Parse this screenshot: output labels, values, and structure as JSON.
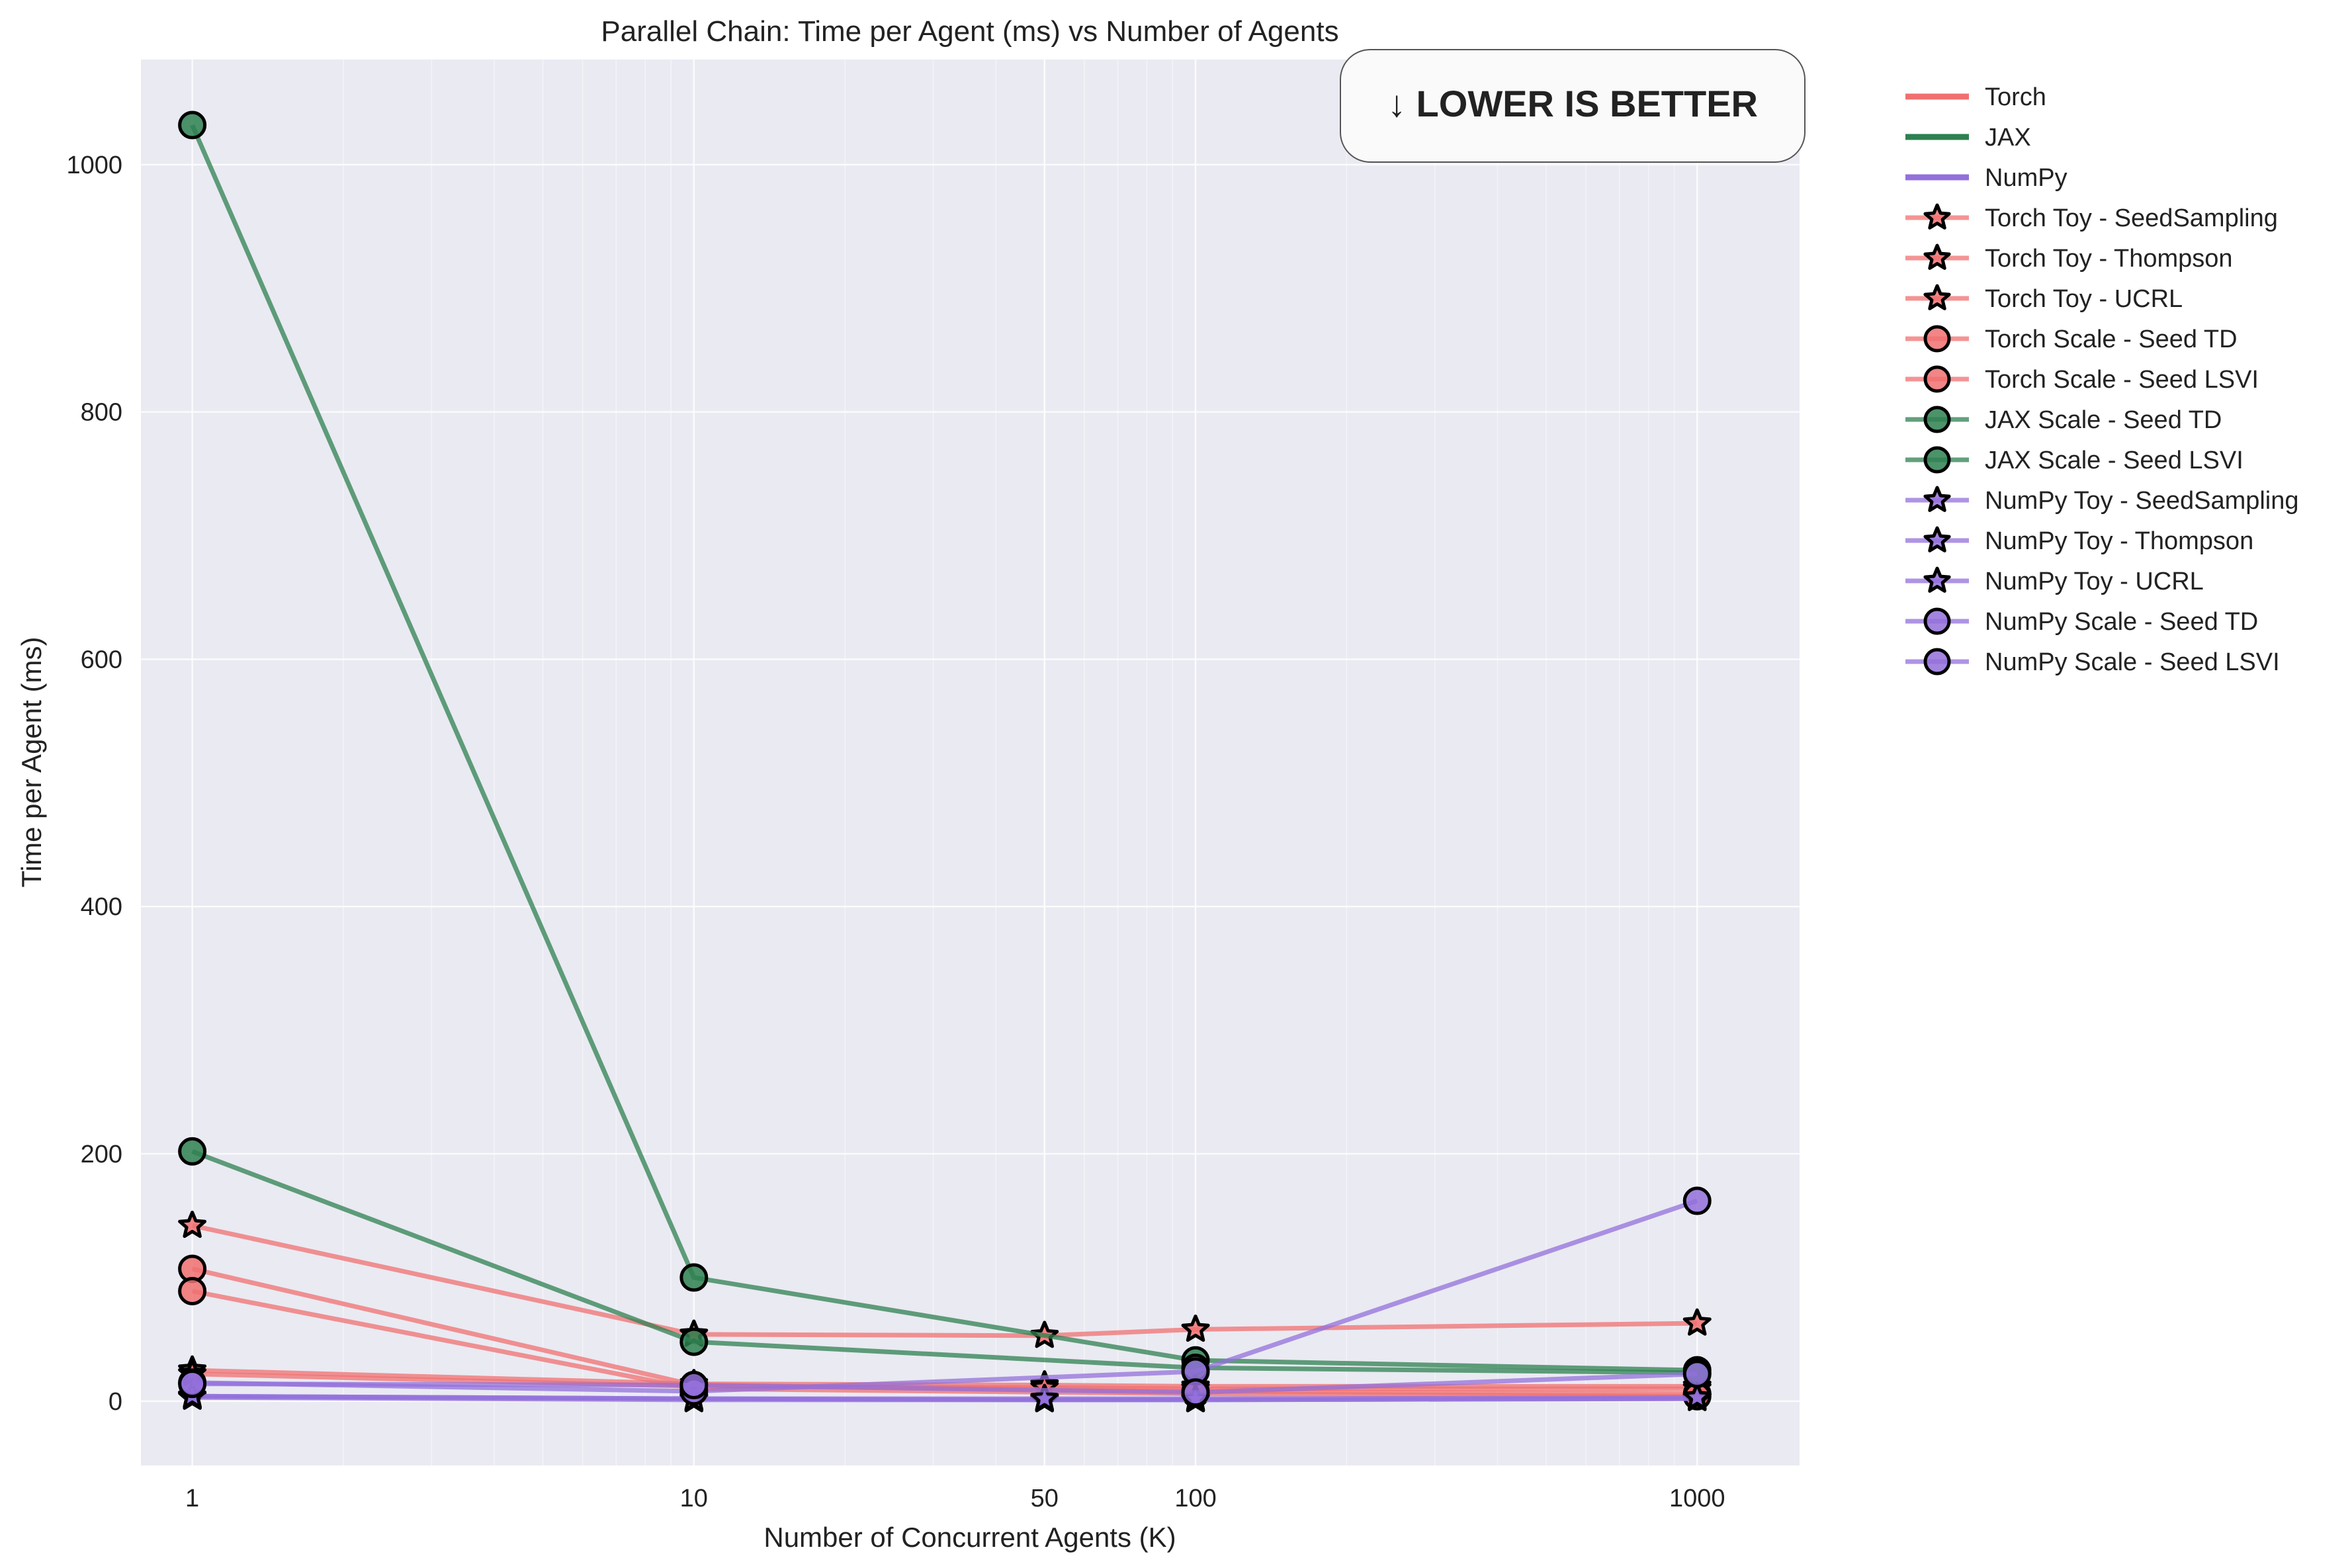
{
  "chart_data": {
    "type": "line",
    "title": "Parallel Chain: Time per Agent (ms) vs Number of Agents",
    "xlabel": "Number of Concurrent Agents (K)",
    "ylabel": "Time per Agent (ms)",
    "x_scale": "log",
    "xlim": [
      0.79,
      1600
    ],
    "ylim": [
      -52,
      1085
    ],
    "x_ticks": [
      1,
      10,
      50,
      100,
      1000
    ],
    "x_tick_labels": [
      "1",
      "10",
      "50",
      "100",
      "1000"
    ],
    "y_ticks": [
      0,
      200,
      400,
      600,
      800,
      1000
    ],
    "y_tick_labels": [
      "0",
      "200",
      "400",
      "600",
      "800",
      "1000"
    ],
    "grid": true,
    "legend_position": "outside-right",
    "annotation": "↓ LOWER IS BETTER",
    "colors": {
      "Torch": "#f07070",
      "JAX": "#2e8050",
      "NumPy": "#9370db"
    },
    "legend": [
      {
        "label": "Torch",
        "color": "#f07070",
        "marker": "none"
      },
      {
        "label": "JAX",
        "color": "#2e8050",
        "marker": "none"
      },
      {
        "label": "NumPy",
        "color": "#9370db",
        "marker": "none"
      },
      {
        "label": "Torch Toy - SeedSampling",
        "color": "#f07070",
        "marker": "star"
      },
      {
        "label": "Torch Toy - Thompson",
        "color": "#f07070",
        "marker": "star"
      },
      {
        "label": "Torch Toy - UCRL",
        "color": "#f07070",
        "marker": "star"
      },
      {
        "label": "Torch Scale - Seed TD",
        "color": "#f07070",
        "marker": "circle"
      },
      {
        "label": "Torch Scale - Seed LSVI",
        "color": "#f07070",
        "marker": "circle"
      },
      {
        "label": "JAX Scale - Seed TD",
        "color": "#2e8050",
        "marker": "circle"
      },
      {
        "label": "JAX Scale - Seed LSVI",
        "color": "#2e8050",
        "marker": "circle"
      },
      {
        "label": "NumPy Toy - SeedSampling",
        "color": "#9370db",
        "marker": "star"
      },
      {
        "label": "NumPy Toy - Thompson",
        "color": "#9370db",
        "marker": "star"
      },
      {
        "label": "NumPy Toy - UCRL",
        "color": "#9370db",
        "marker": "star"
      },
      {
        "label": "NumPy Scale - Seed TD",
        "color": "#9370db",
        "marker": "circle"
      },
      {
        "label": "NumPy Scale - Seed LSVI",
        "color": "#9370db",
        "marker": "circle"
      }
    ],
    "series": [
      {
        "name": "Torch Toy - SeedSampling",
        "color": "#f07070",
        "marker": "star",
        "x": [
          1,
          10,
          50,
          100,
          1000
        ],
        "y": [
          142,
          54,
          53,
          58,
          63
        ]
      },
      {
        "name": "Torch Toy - Thompson",
        "color": "#f07070",
        "marker": "star",
        "x": [
          1,
          10,
          50,
          100,
          1000
        ],
        "y": [
          25,
          14,
          13,
          12,
          12
        ]
      },
      {
        "name": "Torch Toy - UCRL",
        "color": "#f07070",
        "marker": "star",
        "x": [
          1,
          10,
          50,
          100,
          1000
        ],
        "y": [
          22,
          12,
          11,
          10,
          10
        ]
      },
      {
        "name": "Torch Scale - Seed TD",
        "color": "#f07070",
        "marker": "circle",
        "x": [
          1,
          10,
          100,
          1000
        ],
        "y": [
          107,
          13,
          8,
          6
        ]
      },
      {
        "name": "Torch Scale - Seed LSVI",
        "color": "#f07070",
        "marker": "circle",
        "x": [
          1,
          10,
          100,
          1000
        ],
        "y": [
          89,
          10,
          6,
          4
        ]
      },
      {
        "name": "JAX Scale - Seed TD",
        "color": "#2e8050",
        "marker": "circle",
        "x": [
          1,
          10,
          100,
          1000
        ],
        "y": [
          1032,
          100,
          33,
          25
        ]
      },
      {
        "name": "JAX Scale - Seed LSVI",
        "color": "#2e8050",
        "marker": "circle",
        "x": [
          1,
          10,
          100,
          1000
        ],
        "y": [
          202,
          48,
          27,
          23
        ]
      },
      {
        "name": "NumPy Toy - SeedSampling",
        "color": "#9370db",
        "marker": "star",
        "x": [
          1,
          10,
          50,
          100,
          1000
        ],
        "y": [
          3,
          1,
          1,
          1,
          2
        ]
      },
      {
        "name": "NumPy Toy - Thompson",
        "color": "#9370db",
        "marker": "star",
        "x": [
          1,
          10,
          50,
          100,
          1000
        ],
        "y": [
          4,
          2,
          1,
          1,
          2
        ]
      },
      {
        "name": "NumPy Toy - UCRL",
        "color": "#9370db",
        "marker": "star",
        "x": [
          1,
          10,
          50,
          100,
          1000
        ],
        "y": [
          4,
          2,
          2,
          2,
          3
        ]
      },
      {
        "name": "NumPy Scale - Seed TD",
        "color": "#9370db",
        "marker": "circle",
        "x": [
          1,
          10,
          100,
          1000
        ],
        "y": [
          15,
          8,
          24,
          162
        ]
      },
      {
        "name": "NumPy Scale - Seed LSVI",
        "color": "#9370db",
        "marker": "circle",
        "x": [
          1,
          10,
          100,
          1000
        ],
        "y": [
          14,
          13,
          7,
          22
        ]
      }
    ]
  }
}
